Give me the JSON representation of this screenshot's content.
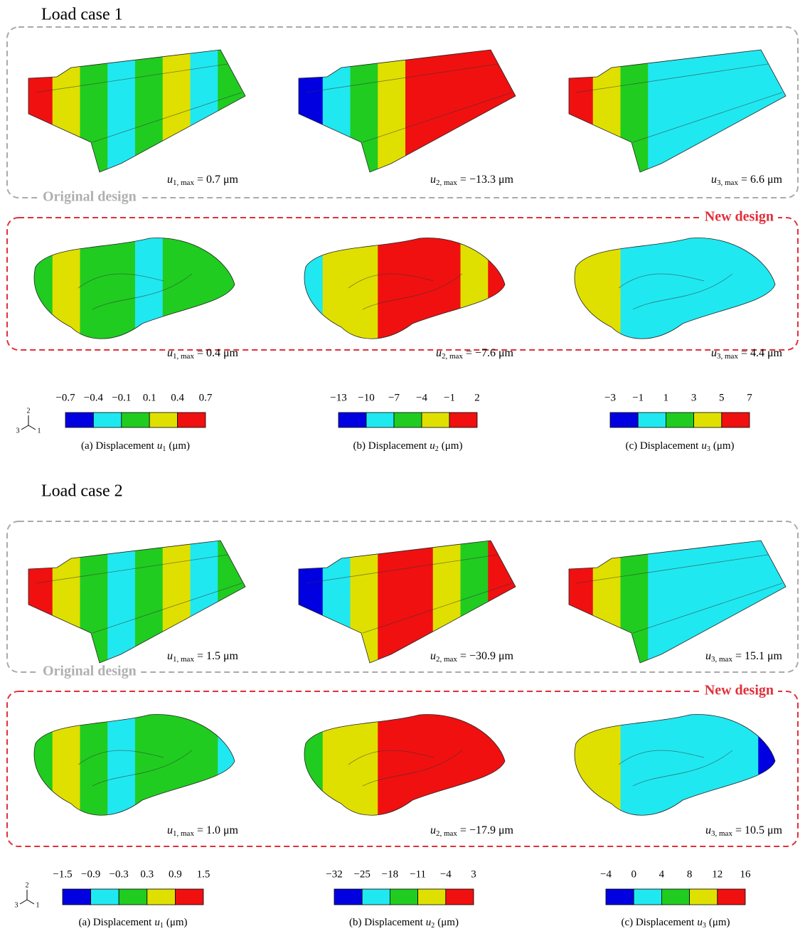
{
  "sections": [
    {
      "title": "Load case 1",
      "original": {
        "label": "Original design",
        "results": [
          {
            "symbol": "u",
            "subscript": "1, max",
            "text": "= 0.7 μm"
          },
          {
            "symbol": "u",
            "subscript": "2, max",
            "text": "= −13.3 μm"
          },
          {
            "symbol": "u",
            "subscript": "3, max",
            "text": "= 6.6 μm"
          }
        ]
      },
      "new": {
        "label": "New design",
        "results": [
          {
            "symbol": "u",
            "subscript": "1, max",
            "text": "= 0.4 μm"
          },
          {
            "symbol": "u",
            "subscript": "2, max",
            "text": "= −7.6 μm"
          },
          {
            "symbol": "u",
            "subscript": "3, max",
            "text": "= 4.4 μm"
          }
        ]
      },
      "triad": [
        "2",
        "3",
        "1"
      ],
      "legends": [
        {
          "ticks": [
            "−0.7",
            "−0.4",
            "−0.1",
            "0.1",
            "0.4",
            "0.7"
          ],
          "colors": [
            "#0000e0",
            "#20e8f0",
            "#20cc20",
            "#e0e000",
            "#f01010"
          ],
          "caption": {
            "prefix": "(a) Displacement",
            "symbol": "u",
            "subscript": "1",
            "unit": "(μm)"
          }
        },
        {
          "ticks": [
            "−13",
            "−10",
            "−7",
            "−4",
            "−1",
            "2"
          ],
          "colors": [
            "#0000e0",
            "#20e8f0",
            "#20cc20",
            "#e0e000",
            "#f01010"
          ],
          "caption": {
            "prefix": "(b) Displacement",
            "symbol": "u",
            "subscript": "2",
            "unit": "(μm)"
          }
        },
        {
          "ticks": [
            "−3",
            "−1",
            "1",
            "3",
            "5",
            "7"
          ],
          "colors": [
            "#0000e0",
            "#20e8f0",
            "#20cc20",
            "#e0e000",
            "#f01010"
          ],
          "caption": {
            "prefix": "(c) Displacement",
            "symbol": "u",
            "subscript": "3",
            "unit": "(μm)"
          }
        }
      ]
    },
    {
      "title": "Load case 2",
      "original": {
        "label": "Original design",
        "results": [
          {
            "symbol": "u",
            "subscript": "1, max",
            "text": "= 1.5 μm"
          },
          {
            "symbol": "u",
            "subscript": "2, max",
            "text": "= −30.9 μm"
          },
          {
            "symbol": "u",
            "subscript": "3, max",
            "text": "= 15.1 μm"
          }
        ]
      },
      "new": {
        "label": "New design",
        "results": [
          {
            "symbol": "u",
            "subscript": "1, max",
            "text": "= 1.0 μm"
          },
          {
            "symbol": "u",
            "subscript": "2, max",
            "text": "= −17.9 μm"
          },
          {
            "symbol": "u",
            "subscript": "3, max",
            "text": "= 10.5 μm"
          }
        ]
      },
      "triad": [
        "2",
        "3",
        "1"
      ],
      "legends": [
        {
          "ticks": [
            "−1.5",
            "−0.9",
            "−0.3",
            "0.3",
            "0.9",
            "1.5"
          ],
          "colors": [
            "#0000e0",
            "#20e8f0",
            "#20cc20",
            "#e0e000",
            "#f01010"
          ],
          "caption": {
            "prefix": "(a) Displacement",
            "symbol": "u",
            "subscript": "1",
            "unit": "(μm)"
          }
        },
        {
          "ticks": [
            "−32",
            "−25",
            "−18",
            "−11",
            "−4",
            "3"
          ],
          "colors": [
            "#0000e0",
            "#20e8f0",
            "#20cc20",
            "#e0e000",
            "#f01010"
          ],
          "caption": {
            "prefix": "(b) Displacement",
            "symbol": "u",
            "subscript": "2",
            "unit": "(μm)"
          }
        },
        {
          "ticks": [
            "−4",
            "0",
            "4",
            "8",
            "12",
            "16"
          ],
          "colors": [
            "#0000e0",
            "#20e8f0",
            "#20cc20",
            "#e0e000",
            "#f01010"
          ],
          "caption": {
            "prefix": "(c) Displacement",
            "symbol": "u",
            "subscript": "3",
            "unit": "(μm)"
          }
        }
      ]
    }
  ]
}
